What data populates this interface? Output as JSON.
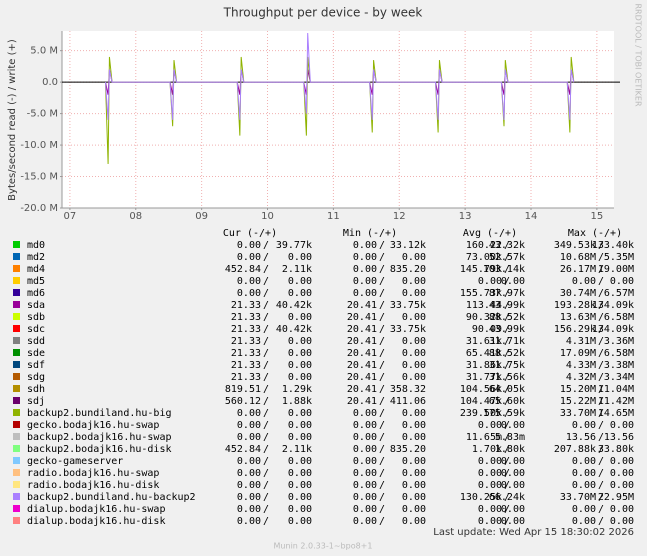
{
  "chart_data": {
    "type": "line",
    "title": "Throughput per device - by week",
    "y_label": "Bytes/second read (-) / write (+)",
    "watermark": "RRDTOOL / TOBI OETIKER",
    "xlim": [
      6.88,
      15.26
    ],
    "ylim": [
      -20000000,
      8125000
    ],
    "xticks": [
      {
        "value": 7,
        "label": "07"
      },
      {
        "value": 8,
        "label": "08"
      },
      {
        "value": 9,
        "label": "09"
      },
      {
        "value": 10,
        "label": "10"
      },
      {
        "value": 11,
        "label": "11"
      },
      {
        "value": 12,
        "label": "12"
      },
      {
        "value": 13,
        "label": "13"
      },
      {
        "value": 14,
        "label": "14"
      },
      {
        "value": 15,
        "label": "15"
      }
    ],
    "yticks": [
      {
        "value": 5000000,
        "label": "5.0 M"
      },
      {
        "value": 0,
        "label": "0.0"
      },
      {
        "value": -5000000,
        "label": "-5.0 M"
      },
      {
        "value": -10000000,
        "label": "-10.0 M"
      },
      {
        "value": -15000000,
        "label": "-15.0 M"
      },
      {
        "value": -20000000,
        "label": "-20.0 M"
      }
    ],
    "grid": true,
    "x": [
      7.54,
      7.58,
      7.6,
      7.64,
      8.52,
      8.56,
      8.58,
      8.62,
      9.54,
      9.58,
      9.6,
      9.64,
      10.55,
      10.59,
      10.61,
      10.65,
      11.55,
      11.59,
      11.61,
      11.65,
      12.55,
      12.59,
      12.61,
      12.65,
      13.55,
      13.59,
      13.61,
      13.65,
      14.55,
      14.59,
      14.61,
      14.65
    ],
    "columns": [
      "Cur (-/+)",
      "Min (-/+)",
      "Avg (-/+)",
      "Max (-/+)"
    ],
    "series": [
      {
        "name": "md0",
        "color": "#00cc00",
        "stats": [
          [
            "0.00",
            "39.77k"
          ],
          [
            "0.00",
            "33.12k"
          ],
          [
            "160.22",
            "43.32k"
          ],
          [
            "349.53k",
            "133.40k"
          ]
        ]
      },
      {
        "name": "md2",
        "color": "#0066b3",
        "stats": [
          [
            "0.00",
            "0.00"
          ],
          [
            "0.00",
            "0.00"
          ],
          [
            "73.00k",
            "52.57k"
          ],
          [
            "10.68M",
            "5.35M"
          ]
        ]
      },
      {
        "name": "md4",
        "color": "#ff8000",
        "stats": [
          [
            "452.84",
            "2.11k"
          ],
          [
            "0.00",
            "835.20"
          ],
          [
            "145.79k",
            "103.14k"
          ],
          [
            "26.17M",
            "19.00M"
          ]
        ]
      },
      {
        "name": "md5",
        "color": "#ffcc00",
        "stats": [
          [
            "0.00",
            "0.00"
          ],
          [
            "0.00",
            "0.00"
          ],
          [
            "0.00",
            "0.00"
          ],
          [
            "0.00",
            "0.00"
          ]
        ]
      },
      {
        "name": "md6",
        "color": "#330099",
        "stats": [
          [
            "0.00",
            "0.00"
          ],
          [
            "0.00",
            "0.00"
          ],
          [
            "155.73k",
            "87.97k"
          ],
          [
            "30.74M",
            "6.57M"
          ]
        ]
      },
      {
        "name": "sda",
        "color": "#990099",
        "stats": [
          [
            "21.33",
            "40.42k"
          ],
          [
            "20.41",
            "33.75k"
          ],
          [
            "113.44",
            "43.99k"
          ],
          [
            "193.28k",
            "134.09k"
          ]
        ],
        "values": [
          0,
          -2000000,
          2000000,
          0,
          0,
          -2000000,
          2000000,
          0,
          0,
          -2000000,
          2000000,
          0,
          0,
          -2000000,
          2000000,
          0,
          0,
          -2000000,
          2000000,
          0,
          0,
          -2000000,
          2000000,
          0,
          0,
          -2000000,
          2000000,
          0,
          0,
          -2000000,
          2000000,
          0
        ]
      },
      {
        "name": "sdb",
        "color": "#ccff00",
        "stats": [
          [
            "21.33",
            "0.00"
          ],
          [
            "20.41",
            "0.00"
          ],
          [
            "90.32k",
            "88.52k"
          ],
          [
            "13.63M",
            "6.58M"
          ]
        ]
      },
      {
        "name": "sdc",
        "color": "#ff0000",
        "stats": [
          [
            "21.33",
            "40.42k"
          ],
          [
            "20.41",
            "33.75k"
          ],
          [
            "90.09",
            "43.99k"
          ],
          [
            "156.29k",
            "134.09k"
          ]
        ]
      },
      {
        "name": "sdd",
        "color": "#808080",
        "stats": [
          [
            "21.33",
            "0.00"
          ],
          [
            "20.41",
            "0.00"
          ],
          [
            "31.61k",
            "31.71k"
          ],
          [
            "4.31M",
            "3.36M"
          ]
        ]
      },
      {
        "name": "sde",
        "color": "#008f00",
        "stats": [
          [
            "21.33",
            "0.00"
          ],
          [
            "20.41",
            "0.00"
          ],
          [
            "65.41k",
            "88.52k"
          ],
          [
            "17.09M",
            "6.58M"
          ]
        ]
      },
      {
        "name": "sdf",
        "color": "#00487d",
        "stats": [
          [
            "21.33",
            "0.00"
          ],
          [
            "20.41",
            "0.00"
          ],
          [
            "31.86k",
            "31.75k"
          ],
          [
            "4.33M",
            "3.38M"
          ]
        ]
      },
      {
        "name": "sdg",
        "color": "#b35a00",
        "stats": [
          [
            "21.33",
            "0.00"
          ],
          [
            "20.41",
            "0.00"
          ],
          [
            "31.77k",
            "31.56k"
          ],
          [
            "4.32M",
            "3.34M"
          ]
        ]
      },
      {
        "name": "sdh",
        "color": "#b38f00",
        "stats": [
          [
            "819.51",
            "1.29k"
          ],
          [
            "20.41",
            "358.32"
          ],
          [
            "104.56k",
            "64.05k"
          ],
          [
            "15.20M",
            "11.04M"
          ]
        ]
      },
      {
        "name": "sdj",
        "color": "#6b006b",
        "stats": [
          [
            "560.12",
            "1.88k"
          ],
          [
            "20.41",
            "411.06"
          ],
          [
            "104.47k",
            "65.60k"
          ],
          [
            "15.22M",
            "11.42M"
          ]
        ]
      },
      {
        "name": "backup2.bundiland.hu-big",
        "color": "#8fb300",
        "stats": [
          [
            "0.00",
            "0.00"
          ],
          [
            "0.00",
            "0.00"
          ],
          [
            "239.50k",
            "175.59k"
          ],
          [
            "33.70M",
            "14.65M"
          ]
        ],
        "values": [
          0,
          -13000000,
          4000000,
          0,
          0,
          -7000000,
          3500000,
          0,
          0,
          -8500000,
          4000000,
          0,
          0,
          -8500000,
          4000000,
          0,
          0,
          -8000000,
          3500000,
          0,
          0,
          -8000000,
          3500000,
          0,
          0,
          -7000000,
          3500000,
          0,
          0,
          -8000000,
          4000000,
          0
        ]
      },
      {
        "name": "gecko.bodajk16.hu-swap",
        "color": "#b30000",
        "stats": [
          [
            "0.00",
            "0.00"
          ],
          [
            "0.00",
            "0.00"
          ],
          [
            "0.00",
            "0.00"
          ],
          [
            "0.00",
            "0.00"
          ]
        ]
      },
      {
        "name": "backup2.bodajk16.hu-swap",
        "color": "#bebebe",
        "stats": [
          [
            "0.00",
            "0.00"
          ],
          [
            "0.00",
            "0.00"
          ],
          [
            "11.65m",
            "5.83m"
          ],
          [
            "13.56",
            "13.56"
          ]
        ]
      },
      {
        "name": "backup2.bodajk16.hu-disk",
        "color": "#80ff80",
        "stats": [
          [
            "452.84",
            "2.11k"
          ],
          [
            "0.00",
            "835.20"
          ],
          [
            "1.70k",
            "1.80k"
          ],
          [
            "207.88k",
            "33.80k"
          ]
        ]
      },
      {
        "name": "gecko-gameserver",
        "color": "#80c9ff",
        "stats": [
          [
            "0.00",
            "0.00"
          ],
          [
            "0.00",
            "0.00"
          ],
          [
            "0.00",
            "0.00"
          ],
          [
            "0.00",
            "0.00"
          ]
        ]
      },
      {
        "name": "radio.bodajk16.hu-swap",
        "color": "#ffc080",
        "stats": [
          [
            "0.00",
            "0.00"
          ],
          [
            "0.00",
            "0.00"
          ],
          [
            "0.00",
            "0.00"
          ],
          [
            "0.00",
            "0.00"
          ]
        ]
      },
      {
        "name": "radio.bodajk16.hu-disk",
        "color": "#ffe680",
        "stats": [
          [
            "0.00",
            "0.00"
          ],
          [
            "0.00",
            "0.00"
          ],
          [
            "0.00",
            "0.00"
          ],
          [
            "0.00",
            "0.00"
          ]
        ]
      },
      {
        "name": "backup2.bundiland.hu-backup2",
        "color": "#aa80ff",
        "stats": [
          [
            "0.00",
            "0.00"
          ],
          [
            "0.00",
            "0.00"
          ],
          [
            "130.25k",
            "66.24k"
          ],
          [
            "33.70M",
            "22.95M"
          ]
        ],
        "values": [
          0,
          -6000000,
          2000000,
          0,
          0,
          -6000000,
          2000000,
          0,
          0,
          -6000000,
          2000000,
          0,
          0,
          -5000000,
          7800000,
          0,
          0,
          -6000000,
          2000000,
          0,
          0,
          -6000000,
          2000000,
          0,
          0,
          -6000000,
          2000000,
          0,
          0,
          -6000000,
          2000000,
          0
        ]
      },
      {
        "name": "dialup.bodajk16.hu-swap",
        "color": "#ee00cc",
        "stats": [
          [
            "0.00",
            "0.00"
          ],
          [
            "0.00",
            "0.00"
          ],
          [
            "0.00",
            "0.00"
          ],
          [
            "0.00",
            "0.00"
          ]
        ]
      },
      {
        "name": "dialup.bodajk16.hu-disk",
        "color": "#ff8080",
        "stats": [
          [
            "0.00",
            "0.00"
          ],
          [
            "0.00",
            "0.00"
          ],
          [
            "0.00",
            "0.00"
          ],
          [
            "0.00",
            "0.00"
          ]
        ]
      }
    ],
    "last_update": "Last update: Wed Apr 15 18:30:02 2026",
    "footer": "Munin 2.0.33-1~bpo8+1"
  }
}
